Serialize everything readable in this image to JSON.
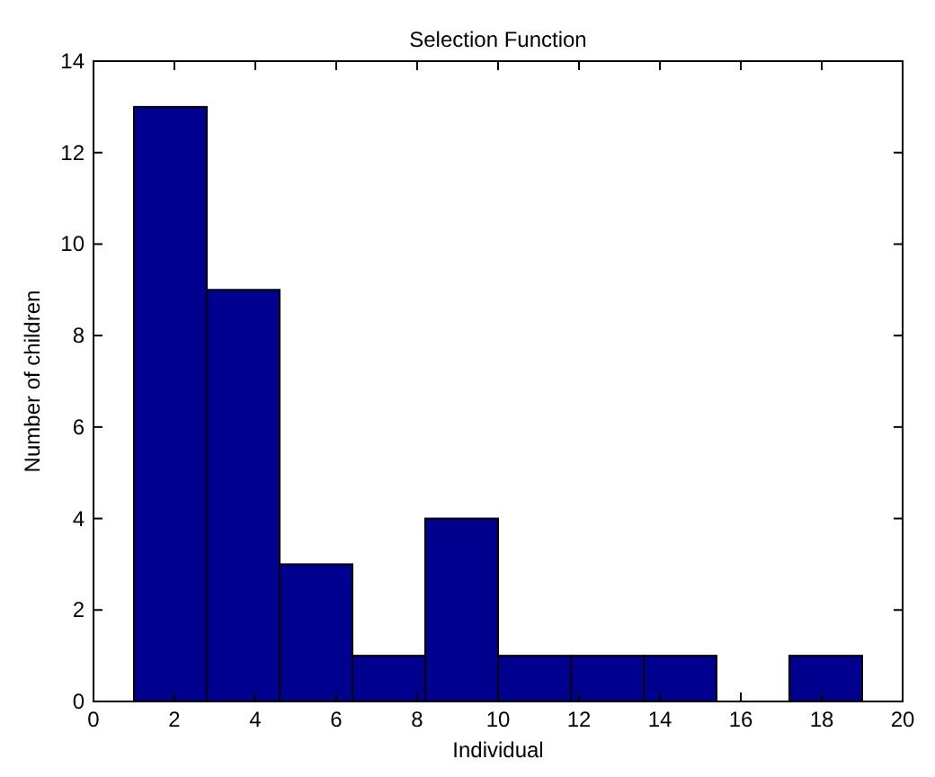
{
  "chart_data": {
    "type": "histogram",
    "title": "Selection Function",
    "xlabel": "Individual",
    "ylabel": "Number of children",
    "bins": [
      1,
      2.8,
      4.6,
      6.4,
      8.2,
      10,
      11.8,
      13.6,
      15.4,
      17.2,
      19
    ],
    "values": [
      13,
      9,
      3,
      1,
      4,
      1,
      1,
      1,
      0,
      1
    ],
    "color": "#00008f",
    "xlim": [
      0,
      20
    ],
    "xticks": [
      0,
      2,
      4,
      6,
      8,
      10,
      12,
      14,
      16,
      18,
      20
    ],
    "ylim": [
      0,
      14
    ],
    "yticks": [
      0,
      2,
      4,
      6,
      8,
      10,
      12,
      14
    ],
    "grid": false
  }
}
